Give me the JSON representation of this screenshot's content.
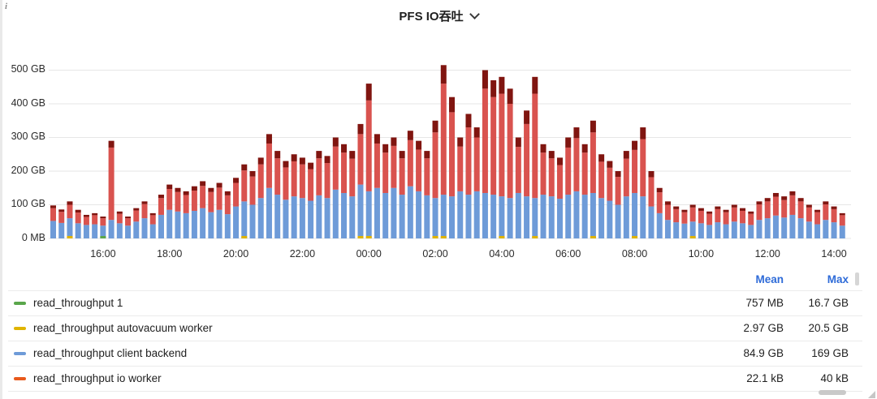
{
  "panel": {
    "title": "PFS IO吞吐",
    "info_icon": "i"
  },
  "chart_data": {
    "type": "bar",
    "stacked": true,
    "title": "PFS IO吞吐",
    "xlabel": "",
    "ylabel": "",
    "grid": true,
    "yticks": [
      "500 GB",
      "400 GB",
      "300 GB",
      "200 GB",
      "100 GB",
      "0 MB"
    ],
    "ylim_gb": [
      0,
      540
    ],
    "xticks": [
      "16:00",
      "18:00",
      "20:00",
      "22:00",
      "00:00",
      "02:00",
      "04:00",
      "06:00",
      "08:00",
      "10:00",
      "12:00",
      "14:00"
    ],
    "x_start": "14:30",
    "x_interval_minutes": 15,
    "series_order": [
      "client_backend_blue",
      "write_red",
      "peak_darkred"
    ],
    "series_colors": {
      "blue": "#6E9BD8",
      "red": "#D9534F",
      "darkred": "#801510",
      "yellow": "#E0B400",
      "green": "#5AA64B",
      "orange": "#E8591C"
    },
    "bars_unit": "GB",
    "bars": [
      [
        52,
        38,
        8
      ],
      [
        46,
        33,
        7
      ],
      [
        60,
        40,
        10
      ],
      [
        45,
        32,
        8
      ],
      [
        40,
        24,
        6
      ],
      [
        42,
        27,
        6
      ],
      [
        38,
        22,
        5
      ],
      [
        55,
        215,
        20
      ],
      [
        45,
        28,
        7
      ],
      [
        38,
        22,
        5
      ],
      [
        50,
        33,
        7
      ],
      [
        60,
        42,
        8
      ],
      [
        42,
        27,
        6
      ],
      [
        70,
        50,
        10
      ],
      [
        85,
        62,
        13
      ],
      [
        80,
        58,
        12
      ],
      [
        75,
        54,
        11
      ],
      [
        82,
        60,
        13
      ],
      [
        90,
        66,
        14
      ],
      [
        78,
        60,
        12
      ],
      [
        85,
        66,
        14
      ],
      [
        72,
        56,
        12
      ],
      [
        95,
        70,
        15
      ],
      [
        110,
        92,
        18
      ],
      [
        100,
        84,
        16
      ],
      [
        120,
        100,
        20
      ],
      [
        150,
        132,
        28
      ],
      [
        130,
        108,
        22
      ],
      [
        115,
        96,
        19
      ],
      [
        125,
        104,
        21
      ],
      [
        120,
        100,
        20
      ],
      [
        112,
        94,
        19
      ],
      [
        128,
        110,
        22
      ],
      [
        120,
        104,
        21
      ],
      [
        145,
        128,
        27
      ],
      [
        135,
        120,
        25
      ],
      [
        125,
        112,
        23
      ],
      [
        160,
        150,
        30
      ],
      [
        140,
        270,
        50
      ],
      [
        150,
        132,
        28
      ],
      [
        135,
        120,
        25
      ],
      [
        150,
        125,
        25
      ],
      [
        130,
        108,
        22
      ],
      [
        155,
        137,
        28
      ],
      [
        140,
        124,
        26
      ],
      [
        128,
        110,
        22
      ],
      [
        120,
        195,
        35
      ],
      [
        130,
        330,
        55
      ],
      [
        125,
        250,
        45
      ],
      [
        140,
        133,
        27
      ],
      [
        130,
        200,
        40
      ],
      [
        140,
        160,
        30
      ],
      [
        135,
        310,
        55
      ],
      [
        130,
        290,
        50
      ],
      [
        125,
        305,
        50
      ],
      [
        120,
        280,
        45
      ],
      [
        135,
        137,
        28
      ],
      [
        125,
        215,
        40
      ],
      [
        120,
        310,
        50
      ],
      [
        130,
        125,
        25
      ],
      [
        125,
        113,
        22
      ],
      [
        118,
        100,
        22
      ],
      [
        130,
        140,
        30
      ],
      [
        140,
        158,
        32
      ],
      [
        130,
        125,
        25
      ],
      [
        135,
        180,
        35
      ],
      [
        120,
        108,
        22
      ],
      [
        112,
        98,
        20
      ],
      [
        100,
        83,
        17
      ],
      [
        125,
        112,
        23
      ],
      [
        135,
        128,
        27
      ],
      [
        125,
        170,
        35
      ],
      [
        95,
        87,
        18
      ],
      [
        75,
        62,
        13
      ],
      [
        55,
        45,
        10
      ],
      [
        48,
        39,
        8
      ],
      [
        44,
        34,
        7
      ],
      [
        50,
        42,
        8
      ],
      [
        45,
        37,
        8
      ],
      [
        40,
        33,
        7
      ],
      [
        48,
        39,
        8
      ],
      [
        42,
        36,
        7
      ],
      [
        50,
        42,
        8
      ],
      [
        45,
        37,
        8
      ],
      [
        40,
        33,
        7
      ],
      [
        55,
        46,
        9
      ],
      [
        60,
        50,
        10
      ],
      [
        68,
        56,
        11
      ],
      [
        62,
        52,
        11
      ],
      [
        70,
        58,
        12
      ],
      [
        60,
        50,
        10
      ],
      [
        50,
        42,
        8
      ],
      [
        42,
        36,
        7
      ],
      [
        55,
        46,
        9
      ],
      [
        48,
        39,
        8
      ],
      [
        38,
        31,
        6
      ]
    ],
    "autovacuum_marker_indices": [
      2,
      23,
      37,
      38,
      46,
      47,
      54,
      58,
      65,
      70,
      77
    ],
    "read1_marker_indices": [
      6
    ]
  },
  "legend": {
    "headers": [
      "Mean",
      "Max"
    ],
    "accent_color": "#2E6BD8",
    "rows": [
      {
        "label": "read_throughput 1",
        "color": "#5AA64B",
        "mean": "757 MB",
        "max": "16.7 GB"
      },
      {
        "label": "read_throughput autovacuum worker",
        "color": "#E0B400",
        "mean": "2.97 GB",
        "max": "20.5 GB"
      },
      {
        "label": "read_throughput client backend",
        "color": "#6E9BD8",
        "mean": "84.9 GB",
        "max": "169 GB"
      },
      {
        "label": "read_throughput io worker",
        "color": "#E8591C",
        "mean": "22.1 kB",
        "max": "40 kB"
      }
    ]
  }
}
